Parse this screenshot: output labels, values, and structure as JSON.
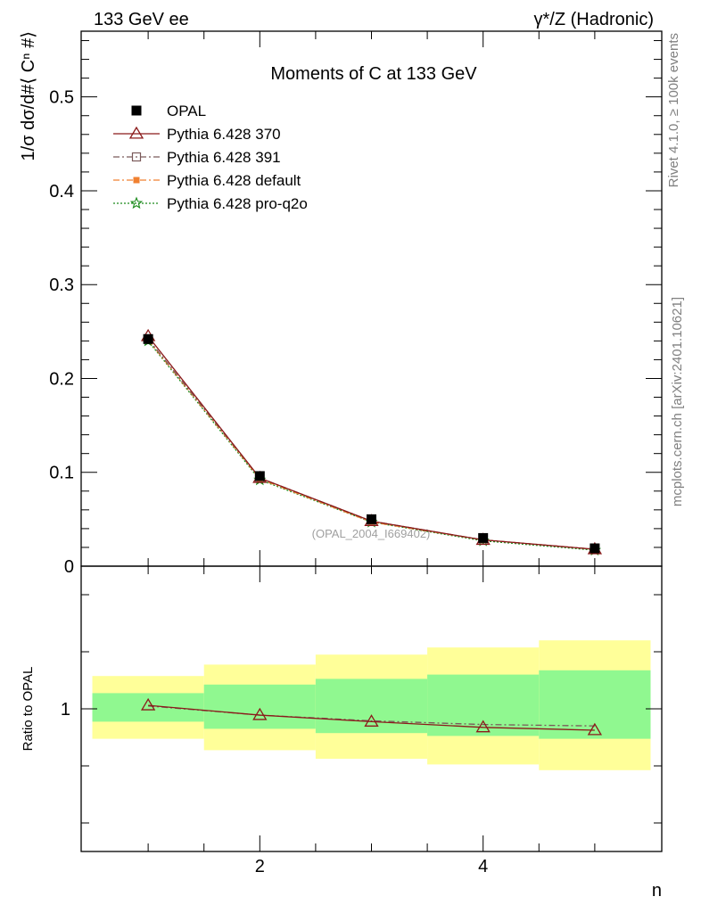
{
  "header": {
    "left": "133 GeV ee",
    "right": "γ*/Z (Hadronic)"
  },
  "side_labels": {
    "rivet": "Rivet 4.1.0, ≥ 100k events",
    "mcplots": "mcplots.cern.ch [arXiv:2401.10621]"
  },
  "watermark": "(OPAL_2004_I669402)",
  "colors": {
    "opal": "#000000",
    "p370": "#8b1a1a",
    "p391": "#7a5a5a",
    "pdefault": "#f08030",
    "pq2o": "#1a8a1a",
    "band_inner": "#90f890",
    "band_outer": "#ffff99"
  },
  "chart_data": {
    "type": "line",
    "title": "Moments of C at 133 GeV",
    "xlabel": "n",
    "ylabel": "1/σ  dσ/d#⟨ Cⁿ #⟩",
    "ratio_ylabel": "Ratio to OPAL",
    "xlim": [
      0.4,
      5.6
    ],
    "ylim": [
      0,
      0.57
    ],
    "ratio_ylim": [
      0.5,
      1.5
    ],
    "x": [
      1,
      2,
      3,
      4,
      5
    ],
    "main_yticks": [
      0,
      0.1,
      0.2,
      0.3,
      0.4,
      0.5
    ],
    "main_ytick_labels": [
      "0",
      "0.1",
      "0.2",
      "0.3",
      "0.4",
      "0.5"
    ],
    "xticks": [
      2,
      4
    ],
    "xtick_labels": [
      "2",
      "4"
    ],
    "ratio_yticks": [
      1
    ],
    "ratio_ytick_labels": [
      "1"
    ],
    "series": [
      {
        "key": "opal",
        "name": "OPAL",
        "marker": "square",
        "dash": "",
        "values": [
          0.242,
          0.096,
          0.05,
          0.03,
          0.019
        ],
        "ratio": [
          1,
          1,
          1,
          1,
          1
        ]
      },
      {
        "key": "p370",
        "name": "Pythia 6.428 370",
        "marker": "triangle",
        "dash": "",
        "values": [
          0.245,
          0.094,
          0.048,
          0.028,
          0.018
        ],
        "ratio": [
          1.012,
          0.978,
          0.955,
          0.935,
          0.925
        ]
      },
      {
        "key": "p391",
        "name": "Pythia 6.428 391",
        "marker": "opensquare",
        "dash": "7,3,2,3",
        "values": [
          0.242,
          0.094,
          0.048,
          0.028,
          0.018
        ],
        "ratio": [
          1.01,
          0.978,
          0.958,
          0.945,
          0.94
        ]
      },
      {
        "key": "pdefault",
        "name": "Pythia 6.428 default",
        "marker": "filledsquare",
        "dash": "7,3,2,3",
        "values": [
          0.241,
          0.093,
          0.047,
          0.028,
          0.018
        ],
        "ratio": [
          1.0,
          0.97,
          0.95,
          0.93,
          0.92
        ]
      },
      {
        "key": "pq2o",
        "name": "Pythia 6.428 pro-q2o",
        "marker": "star",
        "dash": "2,2",
        "values": [
          0.24,
          0.092,
          0.047,
          0.027,
          0.017
        ],
        "ratio": [
          0.995,
          0.965,
          0.945,
          0.925,
          0.915
        ]
      }
    ],
    "bands": {
      "edges": [
        0.5,
        1.5,
        2.5,
        3.5,
        4.5,
        5.5
      ],
      "inner_lo": [
        0.955,
        0.93,
        0.915,
        0.905,
        0.895
      ],
      "inner_hi": [
        1.055,
        1.085,
        1.105,
        1.12,
        1.135
      ],
      "outer_lo": [
        0.895,
        0.855,
        0.825,
        0.805,
        0.785
      ],
      "outer_hi": [
        1.115,
        1.155,
        1.19,
        1.215,
        1.24
      ]
    }
  }
}
